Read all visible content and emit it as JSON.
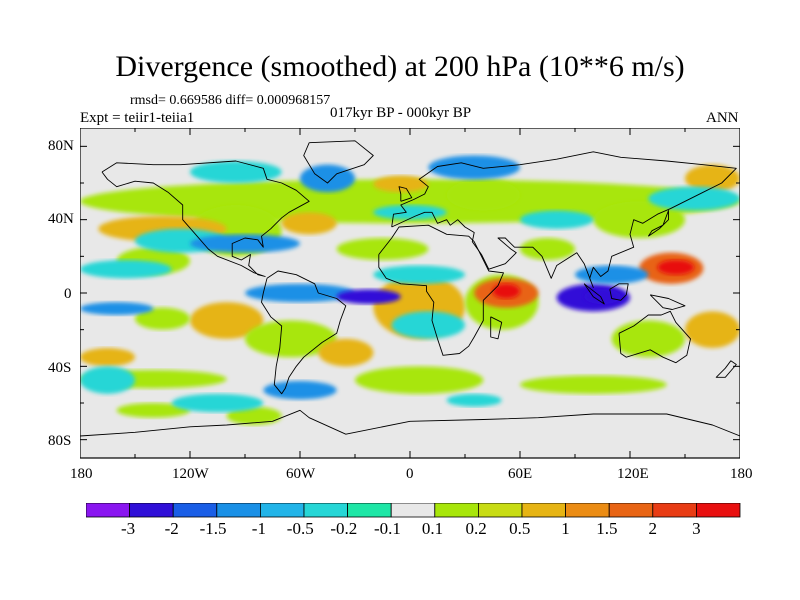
{
  "title": "Divergence (smoothed) at 200 hPa (10**6 m/s)",
  "stats": "rmsd= 0.669586 diff= 0.000968157",
  "experiment": "Expt = teiir1-teiia1",
  "period": "017kyr BP - 000kyr BP",
  "season": "ANN",
  "lat_labels": [
    "80N",
    "40N",
    "0",
    "40S",
    "80S"
  ],
  "lon_labels": [
    "180",
    "120W",
    "60W",
    "0",
    "60E",
    "120E",
    "180"
  ],
  "colorbar": {
    "labels": [
      "-3",
      "-2",
      "-1.5",
      "-1",
      "-0.5",
      "-0.2",
      "-0.1",
      "0.1",
      "0.2",
      "0.5",
      "1",
      "1.5",
      "2",
      "3"
    ],
    "colors": [
      "#8a16f0",
      "#3010d8",
      "#1a5ee6",
      "#1a90e6",
      "#22b4e8",
      "#26d6d6",
      "#1ee6a6",
      "#e8e8e8",
      "#a8e60a",
      "#c8dc14",
      "#e6b414",
      "#eb8c14",
      "#e86414",
      "#e83c14",
      "#e81010"
    ]
  },
  "map_colors": {
    "background": "#e8e8e8",
    "coast": "#000000",
    "neg_strong": "#3010d8",
    "neg_mid": "#1a90e6",
    "neg_weak": "#26d6d6",
    "pos_weak": "#a8e60a",
    "pos_mid": "#e6b414",
    "pos_strong": "#e86414",
    "pos_max": "#e81010"
  }
}
